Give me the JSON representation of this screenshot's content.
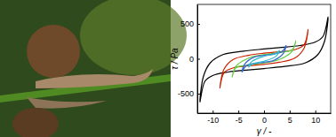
{
  "chart_data": {
    "type": "line",
    "x_label": "γ / -",
    "y_label": "τ / Pa",
    "xlim": [
      -13,
      13
    ],
    "xticks": [
      -10,
      -5,
      0,
      5,
      10
    ],
    "ylim": [
      -780,
      780
    ],
    "yticks": [
      -500,
      0,
      500
    ],
    "grid": false,
    "series": [
      {
        "color": "#000000",
        "x": [
          12.5,
          11.5,
          10,
          7,
          3,
          0,
          -4,
          -8,
          -10.5,
          -11.8,
          -12.5,
          -11.5,
          -10,
          -7,
          -3,
          0,
          4,
          8,
          10.5,
          11.8
        ],
        "values": [
          600,
          320,
          240,
          190,
          160,
          140,
          110,
          60,
          -60,
          -250,
          -620,
          -320,
          -240,
          -190,
          -160,
          -140,
          -110,
          -60,
          60,
          250
        ]
      },
      {
        "color": "#cc2200",
        "x": [
          8.6,
          7.8,
          6,
          3,
          0,
          -3,
          -6,
          -7.8,
          -8.6,
          -7.8,
          -6,
          -3,
          0,
          3,
          6,
          7.8
        ],
        "values": [
          420,
          200,
          130,
          100,
          80,
          50,
          -10,
          -150,
          -420,
          -200,
          -130,
          -100,
          -80,
          -50,
          10,
          150
        ]
      },
      {
        "color": "#66cc44",
        "x": [
          6.2,
          5.5,
          3,
          0,
          -3,
          -5.5,
          -6.2,
          -5.5,
          -3,
          0,
          3,
          5.5
        ],
        "values": [
          260,
          130,
          90,
          60,
          10,
          -110,
          -260,
          -130,
          -90,
          -60,
          -10,
          110
        ]
      },
      {
        "color": "#3366cc",
        "x": [
          4.3,
          3.5,
          1,
          -2,
          -3.8,
          -4.3,
          -3.5,
          -1,
          2,
          3.8
        ],
        "values": [
          190,
          100,
          60,
          20,
          -80,
          -190,
          -100,
          -60,
          -20,
          80
        ]
      },
      {
        "color": "#33bbcc",
        "x": [
          3,
          2.2,
          0,
          -2.4,
          -3,
          -2.2,
          0,
          2.4
        ],
        "values": [
          120,
          70,
          35,
          -40,
          -120,
          -70,
          -35,
          40
        ]
      }
    ]
  }
}
